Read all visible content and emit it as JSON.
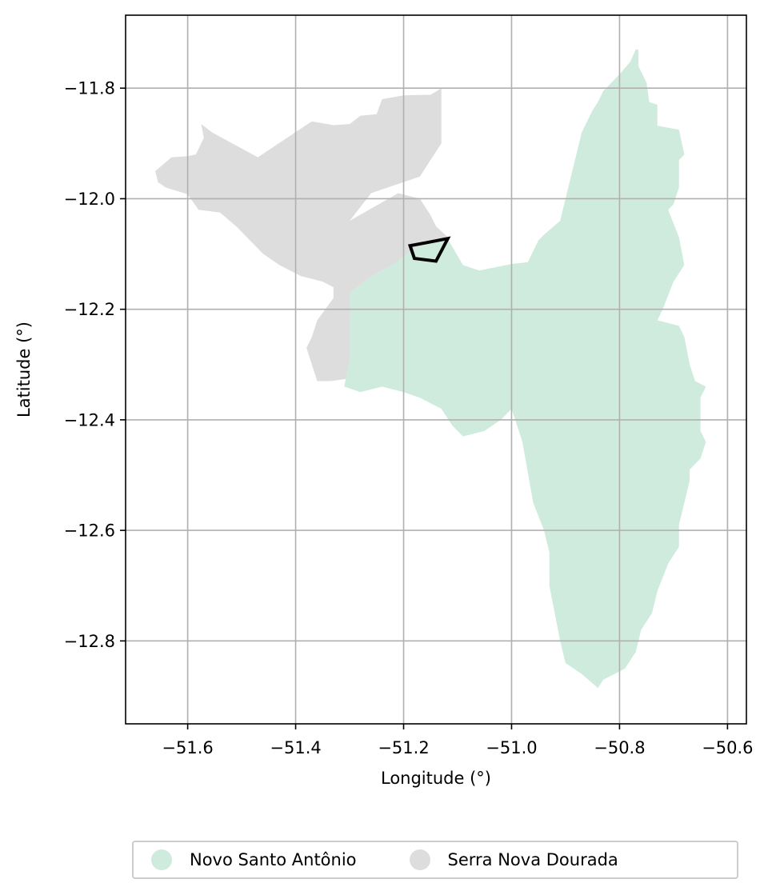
{
  "chart_data": {
    "type": "map",
    "xlabel": "Longitude (°)",
    "ylabel": "Latitude (°)",
    "xlim": [
      -51.715,
      -50.565
    ],
    "ylim": [
      -12.95,
      -11.668
    ],
    "xticks": [
      -51.6,
      -51.4,
      -51.2,
      -51.0,
      -50.8,
      -50.6
    ],
    "yticks": [
      -11.8,
      -12.0,
      -12.2,
      -12.4,
      -12.6,
      -12.8
    ],
    "xtick_labels": [
      "−51.6",
      "−51.4",
      "−51.2",
      "−51.0",
      "−50.8",
      "−50.6"
    ],
    "ytick_labels": [
      "−11.8",
      "−12.0",
      "−12.2",
      "−12.4",
      "−12.6",
      "−12.8"
    ],
    "grid": true,
    "legend_position": "bottom-center",
    "regions": [
      {
        "name": "Serra Nova Dourada",
        "color": "#dddddd",
        "outline": [
          [
            -51.13,
            -11.8
          ],
          [
            -51.15,
            -11.812
          ],
          [
            -51.2,
            -11.813
          ],
          [
            -51.24,
            -11.82
          ],
          [
            -51.25,
            -11.847
          ],
          [
            -51.28,
            -11.85
          ],
          [
            -51.3,
            -11.865
          ],
          [
            -51.33,
            -11.867
          ],
          [
            -51.37,
            -11.86
          ],
          [
            -51.47,
            -11.925
          ],
          [
            -51.555,
            -11.88
          ],
          [
            -51.575,
            -11.865
          ],
          [
            -51.57,
            -11.89
          ],
          [
            -51.585,
            -11.92
          ],
          [
            -51.6,
            -11.923
          ],
          [
            -51.63,
            -11.925
          ],
          [
            -51.66,
            -11.95
          ],
          [
            -51.655,
            -11.97
          ],
          [
            -51.64,
            -11.98
          ],
          [
            -51.6,
            -11.992
          ],
          [
            -51.58,
            -12.02
          ],
          [
            -51.54,
            -12.025
          ],
          [
            -51.51,
            -12.05
          ],
          [
            -51.49,
            -12.07
          ],
          [
            -51.46,
            -12.1
          ],
          [
            -51.43,
            -12.12
          ],
          [
            -51.39,
            -12.14
          ],
          [
            -51.35,
            -12.15
          ],
          [
            -51.33,
            -12.16
          ],
          [
            -51.33,
            -12.18
          ],
          [
            -51.36,
            -12.22
          ],
          [
            -51.37,
            -12.25
          ],
          [
            -51.38,
            -12.27
          ],
          [
            -51.36,
            -12.33
          ],
          [
            -51.335,
            -12.33
          ],
          [
            -51.3,
            -12.325
          ],
          [
            -51.3,
            -12.25
          ],
          [
            -51.3,
            -12.17
          ],
          [
            -51.26,
            -12.14
          ],
          [
            -51.22,
            -12.12
          ],
          [
            -51.18,
            -12.09
          ],
          [
            -51.14,
            -12.075
          ],
          [
            -51.12,
            -12.07
          ],
          [
            -51.12,
            -12.068
          ],
          [
            -51.14,
            -12.05
          ],
          [
            -51.15,
            -12.03
          ],
          [
            -51.17,
            -12.0
          ],
          [
            -51.21,
            -11.99
          ],
          [
            -51.3,
            -12.04
          ],
          [
            -51.26,
            -11.99
          ],
          [
            -51.17,
            -11.96
          ],
          [
            -51.13,
            -11.9
          ]
        ]
      },
      {
        "name": "Novo Santo Antônio",
        "color": "#cfebdd",
        "outline": [
          [
            -51.3,
            -12.17
          ],
          [
            -51.26,
            -12.14
          ],
          [
            -51.22,
            -12.12
          ],
          [
            -51.18,
            -12.09
          ],
          [
            -51.14,
            -12.075
          ],
          [
            -51.12,
            -12.07
          ],
          [
            -51.09,
            -12.12
          ],
          [
            -51.06,
            -12.13
          ],
          [
            -51.0,
            -12.118
          ],
          [
            -50.97,
            -12.115
          ],
          [
            -50.95,
            -12.075
          ],
          [
            -50.94,
            -12.065
          ],
          [
            -50.91,
            -12.04
          ],
          [
            -50.9,
            -12.0
          ],
          [
            -50.88,
            -11.92
          ],
          [
            -50.87,
            -11.88
          ],
          [
            -50.85,
            -11.84
          ],
          [
            -50.84,
            -11.825
          ],
          [
            -50.83,
            -11.805
          ],
          [
            -50.81,
            -11.785
          ],
          [
            -50.8,
            -11.775
          ],
          [
            -50.78,
            -11.752
          ],
          [
            -50.77,
            -11.73
          ],
          [
            -50.765,
            -11.73
          ],
          [
            -50.765,
            -11.76
          ],
          [
            -50.75,
            -11.79
          ],
          [
            -50.745,
            -11.825
          ],
          [
            -50.73,
            -11.83
          ],
          [
            -50.73,
            -11.868
          ],
          [
            -50.69,
            -11.875
          ],
          [
            -50.68,
            -11.92
          ],
          [
            -50.69,
            -11.93
          ],
          [
            -50.69,
            -11.98
          ],
          [
            -50.7,
            -12.01
          ],
          [
            -50.71,
            -12.02
          ],
          [
            -50.69,
            -12.07
          ],
          [
            -50.68,
            -12.12
          ],
          [
            -50.7,
            -12.15
          ],
          [
            -50.72,
            -12.2
          ],
          [
            -50.73,
            -12.22
          ],
          [
            -50.69,
            -12.23
          ],
          [
            -50.68,
            -12.25
          ],
          [
            -50.67,
            -12.3
          ],
          [
            -50.66,
            -12.33
          ],
          [
            -50.64,
            -12.34
          ],
          [
            -50.65,
            -12.36
          ],
          [
            -50.65,
            -12.42
          ],
          [
            -50.64,
            -12.44
          ],
          [
            -50.65,
            -12.47
          ],
          [
            -50.67,
            -12.49
          ],
          [
            -50.67,
            -12.51
          ],
          [
            -50.68,
            -12.55
          ],
          [
            -50.69,
            -12.59
          ],
          [
            -50.69,
            -12.63
          ],
          [
            -50.71,
            -12.66
          ],
          [
            -50.73,
            -12.71
          ],
          [
            -50.74,
            -12.75
          ],
          [
            -50.76,
            -12.78
          ],
          [
            -50.77,
            -12.82
          ],
          [
            -50.79,
            -12.85
          ],
          [
            -50.83,
            -12.87
          ],
          [
            -50.84,
            -12.885
          ],
          [
            -50.87,
            -12.86
          ],
          [
            -50.9,
            -12.84
          ],
          [
            -50.91,
            -12.8
          ],
          [
            -50.93,
            -12.7
          ],
          [
            -50.93,
            -12.64
          ],
          [
            -50.94,
            -12.6
          ],
          [
            -50.96,
            -12.55
          ],
          [
            -50.98,
            -12.44
          ],
          [
            -51.0,
            -12.38
          ],
          [
            -51.02,
            -12.4
          ],
          [
            -51.05,
            -12.42
          ],
          [
            -51.09,
            -12.43
          ],
          [
            -51.11,
            -12.41
          ],
          [
            -51.13,
            -12.38
          ],
          [
            -51.17,
            -12.36
          ],
          [
            -51.2,
            -12.35
          ],
          [
            -51.24,
            -12.34
          ],
          [
            -51.28,
            -12.35
          ],
          [
            -51.31,
            -12.34
          ],
          [
            -51.3,
            -12.29
          ],
          [
            -51.3,
            -12.22
          ]
        ]
      }
    ],
    "highlight_outline": {
      "color": "#000000",
      "outline": [
        [
          -51.188,
          -12.085
        ],
        [
          -51.18,
          -12.108
        ],
        [
          -51.14,
          -12.113
        ],
        [
          -51.118,
          -12.072
        ],
        [
          -51.16,
          -12.08
        ]
      ]
    }
  },
  "legend": {
    "items": [
      {
        "label": "Novo Santo Antônio",
        "color": "#cfebdd"
      },
      {
        "label": "Serra Nova Dourada",
        "color": "#dddddd"
      }
    ]
  }
}
